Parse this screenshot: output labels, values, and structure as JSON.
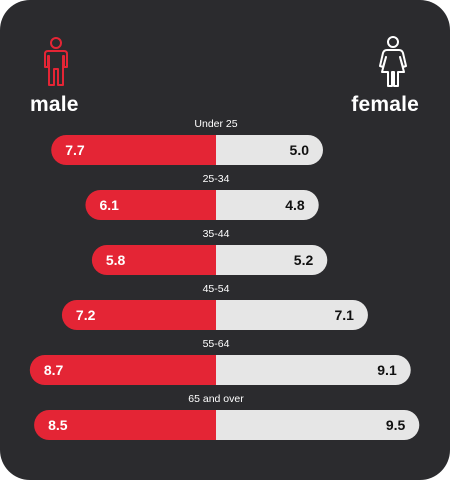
{
  "legend": {
    "male_label": "male",
    "female_label": "female",
    "male_icon": "male-person-icon",
    "female_icon": "female-person-icon"
  },
  "colors": {
    "background": "#2b2b2e",
    "male": "#e42535",
    "female": "#e6e6e6",
    "text_on_male": "#ffffff",
    "text_on_female": "#111111",
    "category_text": "#ffffff"
  },
  "chart_data": {
    "type": "bar",
    "orientation": "diverging-horizontal",
    "categories": [
      "Under 25",
      "25-34",
      "35-44",
      "45-54",
      "55-64",
      "65 and over"
    ],
    "series": [
      {
        "name": "male",
        "values": [
          7.7,
          6.1,
          5.8,
          7.2,
          8.7,
          8.5
        ]
      },
      {
        "name": "female",
        "values": [
          5.0,
          4.8,
          5.2,
          7.1,
          9.1,
          9.5
        ]
      }
    ],
    "value_labels": {
      "male": [
        "7.7",
        "6.1",
        "5.8",
        "7.2",
        "8.7",
        "8.5"
      ],
      "female": [
        "5.0",
        "4.8",
        "5.2",
        "7.1",
        "9.1",
        "9.5"
      ]
    }
  }
}
